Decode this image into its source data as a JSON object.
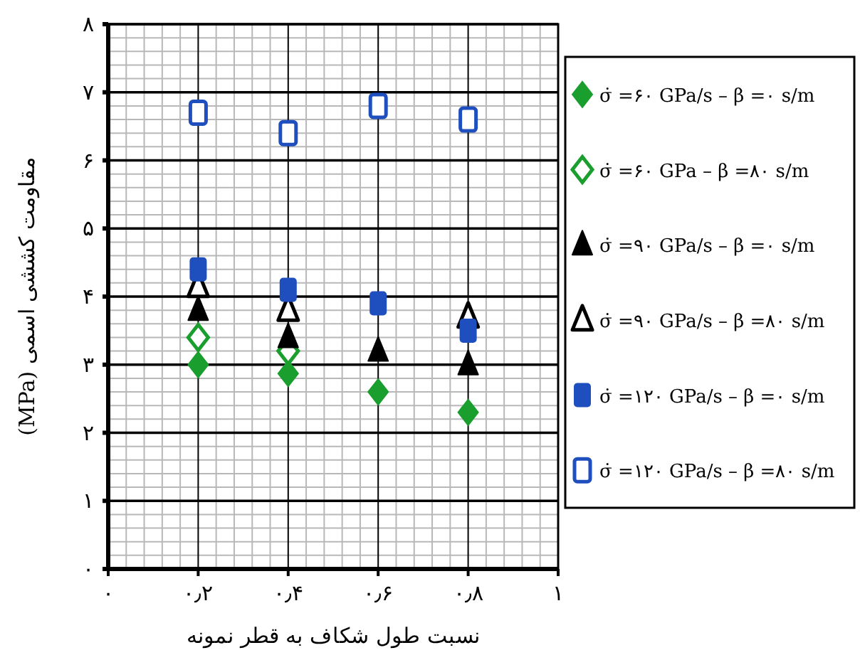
{
  "chart_data": {
    "type": "scatter",
    "xlabel": "نسبت طول شکاف به قطر نمونه",
    "ylabel": "مقاومت کششی اسمی (MPa)",
    "x": [
      0.2,
      0.4,
      0.6,
      0.8
    ],
    "xlim": [
      0,
      1
    ],
    "xticks": [
      {
        "value": 0,
        "label": "۰"
      },
      {
        "value": 0.2,
        "label": "۰٫۲"
      },
      {
        "value": 0.4,
        "label": "۰٫۴"
      },
      {
        "value": 0.6,
        "label": "۰٫۶"
      },
      {
        "value": 0.8,
        "label": "۰٫۸"
      },
      {
        "value": 1,
        "label": "۱"
      }
    ],
    "ylim": [
      0,
      8
    ],
    "yticks": [
      {
        "value": 0,
        "label": "۰"
      },
      {
        "value": 1,
        "label": "۱"
      },
      {
        "value": 2,
        "label": "۲"
      },
      {
        "value": 3,
        "label": "۳"
      },
      {
        "value": 4,
        "label": "۴"
      },
      {
        "value": 5,
        "label": "۵"
      },
      {
        "value": 6,
        "label": "۶"
      },
      {
        "value": 7,
        "label": "۷"
      },
      {
        "value": 8,
        "label": "۸"
      }
    ],
    "grid": true,
    "legend": "right",
    "series": [
      {
        "name": "σ̇ =۶۰ GPa/s – β =۰ s/m",
        "color": "#1a9e2e",
        "marker": "diamond",
        "values": [
          3.0,
          2.87,
          2.6,
          2.3
        ]
      },
      {
        "name": "σ̇ =۶۰ GPa – β =۸۰ s/m",
        "color": "#1a9e2e",
        "marker": "diamond-open",
        "values": [
          3.4,
          3.2,
          null,
          null
        ]
      },
      {
        "name": "σ̇ =۹۰ GPa/s – β =۰ s/m",
        "color": "#000000",
        "marker": "triangle",
        "values": [
          3.8,
          3.4,
          3.2,
          3.0
        ]
      },
      {
        "name": "σ̇ =۹۰ GPa/s – β =۸۰ s/m",
        "color": "#000000",
        "marker": "triangle-open",
        "values": [
          4.15,
          3.8,
          null,
          3.7
        ]
      },
      {
        "name": "σ̇ =۱۲۰ GPa/s – β =۰ s/m",
        "color": "#1f4fbf",
        "marker": "square",
        "values": [
          4.4,
          4.1,
          3.9,
          3.5
        ]
      },
      {
        "name": "σ̇ =۱۲۰ GPa/s – β =۸۰ s/m",
        "color": "#1f4fbf",
        "marker": "square-open",
        "values": [
          6.7,
          6.4,
          6.8,
          6.6
        ]
      }
    ]
  }
}
